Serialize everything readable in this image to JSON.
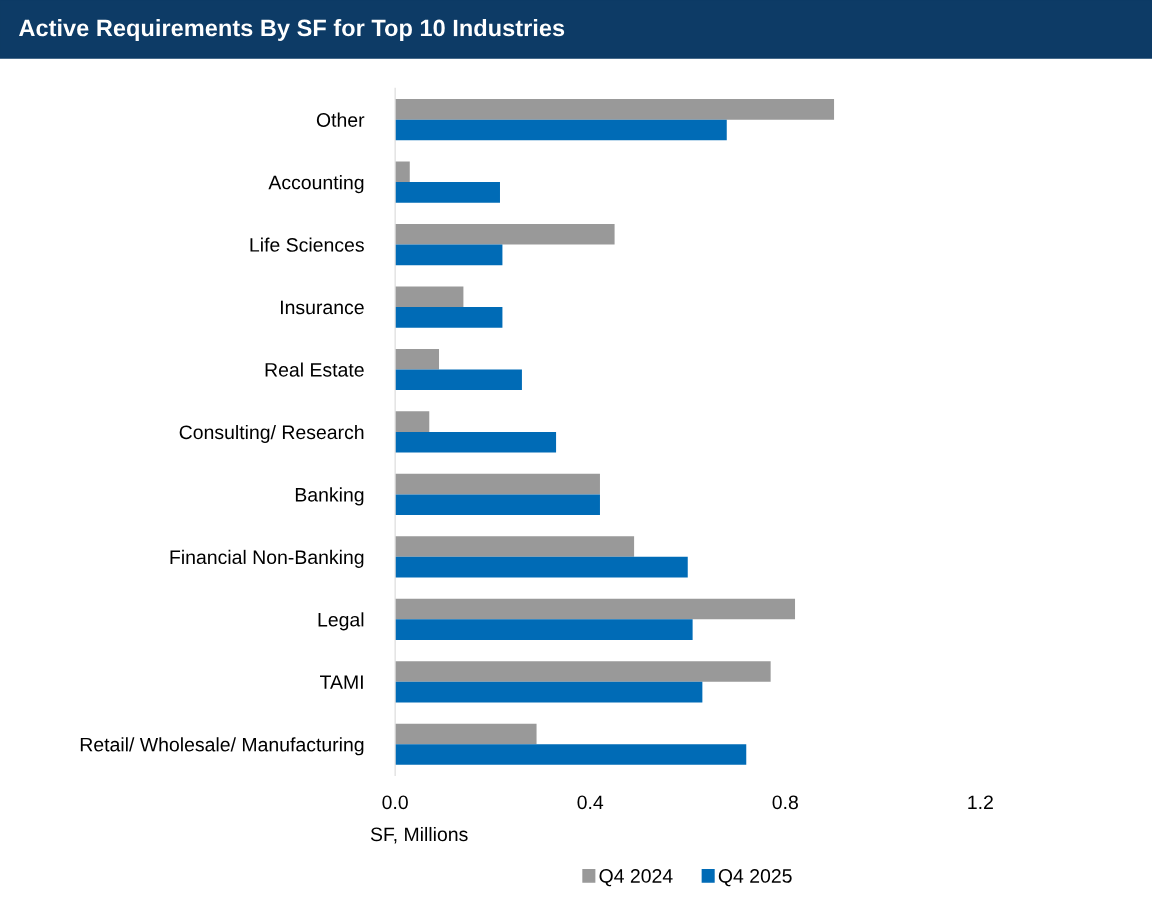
{
  "chart_data": {
    "type": "bar",
    "orientation": "horizontal",
    "title": "Active Requirements By SF for Top 10 Industries",
    "xlabel": "SF, Millions",
    "categories": [
      "Other",
      "Accounting",
      "Life Sciences",
      "Insurance",
      "Real Estate",
      "Consulting/ Research",
      "Banking",
      "Financial Non-Banking",
      "Legal",
      "TAMI",
      "Retail/ Wholesale/ Manufacturing"
    ],
    "series": [
      {
        "name": "Q4 2024",
        "color": "#999999",
        "values": [
          0.9,
          0.03,
          0.45,
          0.14,
          0.09,
          0.07,
          0.42,
          0.49,
          0.82,
          0.77,
          0.29
        ]
      },
      {
        "name": "Q4 2025",
        "color": "#006bb6",
        "values": [
          0.68,
          0.215,
          0.22,
          0.22,
          0.26,
          0.33,
          0.42,
          0.6,
          0.61,
          0.63,
          0.72
        ]
      }
    ],
    "xlim": [
      0,
      1.2
    ],
    "xticks": [
      {
        "value": 0,
        "label": "0.0"
      },
      0.4,
      0.8,
      1.2
    ],
    "grid": false,
    "legend": "bottom"
  }
}
